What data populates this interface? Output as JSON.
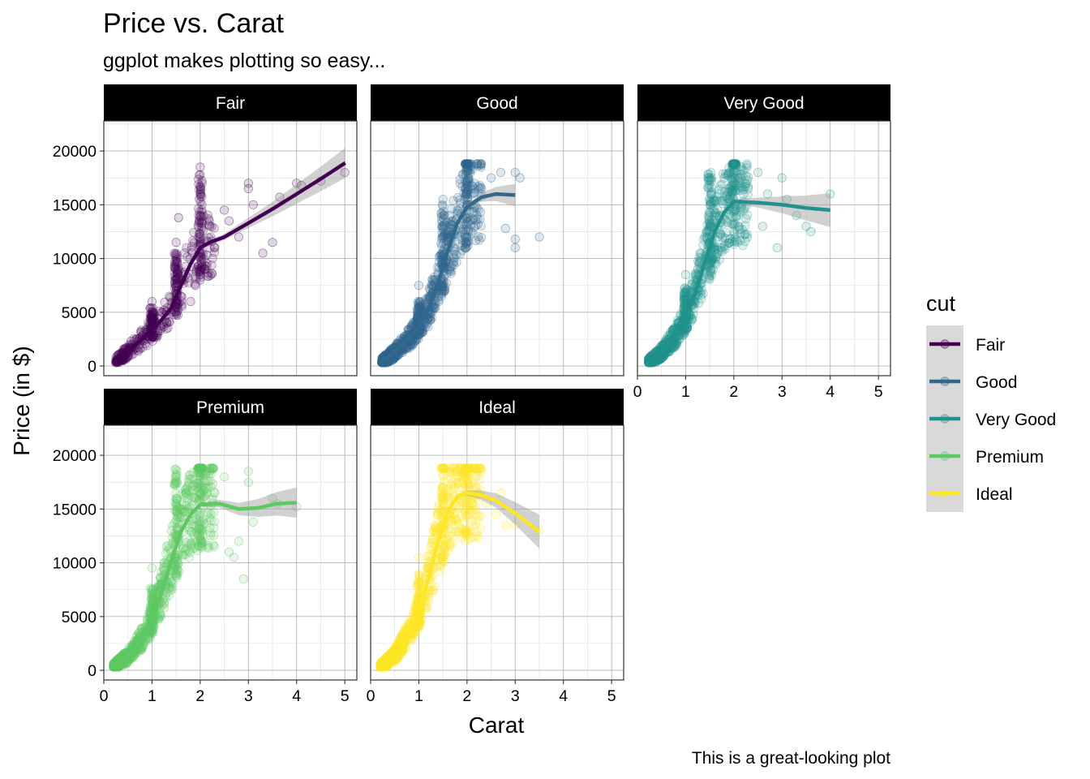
{
  "chart_data": {
    "type": "scatter",
    "title": "Price vs. Carat",
    "subtitle": "ggplot makes plotting so easy...",
    "caption": "This is a great-looking plot",
    "xlabel": "Carat",
    "ylabel": "Price (in $)",
    "xlim": [
      0,
      5.25
    ],
    "ylim": [
      -900,
      22800
    ],
    "x_ticks": [
      "0",
      "1",
      "2",
      "3",
      "4",
      "5"
    ],
    "y_ticks": [
      "0",
      "5000",
      "10000",
      "15000",
      "20000"
    ],
    "grid": true,
    "point_alpha": 0.15,
    "legend": {
      "title": "cut",
      "position": "right"
    },
    "series": [
      {
        "name": "Fair",
        "color": "#440154",
        "points": [
          [
            0.25,
            400
          ],
          [
            0.3,
            600
          ],
          [
            0.35,
            800
          ],
          [
            0.4,
            1000
          ],
          [
            0.45,
            1200
          ],
          [
            0.5,
            1500
          ],
          [
            0.55,
            1800
          ],
          [
            0.6,
            2000
          ],
          [
            0.7,
            2300
          ],
          [
            0.75,
            2600
          ],
          [
            0.8,
            2800
          ],
          [
            0.9,
            3100
          ],
          [
            1.0,
            3500
          ],
          [
            1.0,
            4300
          ],
          [
            1.0,
            6000
          ],
          [
            1.05,
            4500
          ],
          [
            1.1,
            4000
          ],
          [
            1.2,
            5000
          ],
          [
            1.25,
            5200
          ],
          [
            1.4,
            5000
          ],
          [
            1.5,
            5500
          ],
          [
            1.5,
            7000
          ],
          [
            1.5,
            9000
          ],
          [
            1.5,
            11500
          ],
          [
            1.55,
            13800
          ],
          [
            1.6,
            6500
          ],
          [
            1.7,
            8500
          ],
          [
            1.8,
            6000
          ],
          [
            1.9,
            7500
          ],
          [
            2.0,
            8000
          ],
          [
            2.0,
            10500
          ],
          [
            2.0,
            12000
          ],
          [
            2.0,
            14000
          ],
          [
            2.0,
            16000
          ],
          [
            2.0,
            18500
          ],
          [
            2.1,
            9000
          ],
          [
            2.2,
            13000
          ],
          [
            2.3,
            11000
          ],
          [
            2.5,
            14500
          ],
          [
            2.6,
            13500
          ],
          [
            2.8,
            12000
          ],
          [
            3.0,
            17000
          ],
          [
            3.0,
            16500
          ],
          [
            3.1,
            15000
          ],
          [
            3.3,
            10500
          ],
          [
            3.5,
            11500
          ],
          [
            3.65,
            15700
          ],
          [
            4.0,
            17000
          ],
          [
            4.1,
            16800
          ],
          [
            4.5,
            17200
          ],
          [
            5.0,
            18000
          ]
        ],
        "trend": [
          [
            0.25,
            500
          ],
          [
            0.5,
            1400
          ],
          [
            0.8,
            2500
          ],
          [
            1.0,
            3400
          ],
          [
            1.2,
            4300
          ],
          [
            1.4,
            5400
          ],
          [
            1.6,
            7500
          ],
          [
            1.8,
            9500
          ],
          [
            2.0,
            11000
          ],
          [
            2.2,
            11500
          ],
          [
            2.5,
            12000
          ],
          [
            3.0,
            13300
          ],
          [
            3.5,
            14600
          ],
          [
            4.0,
            16000
          ],
          [
            4.5,
            17400
          ],
          [
            5.01,
            18900
          ]
        ],
        "band": 800
      },
      {
        "name": "Good",
        "color": "#31688e",
        "points": [
          [
            0.23,
            350
          ],
          [
            0.3,
            500
          ],
          [
            0.35,
            650
          ],
          [
            0.4,
            800
          ],
          [
            0.45,
            950
          ],
          [
            0.5,
            1200
          ],
          [
            0.55,
            1400
          ],
          [
            0.6,
            1600
          ],
          [
            0.7,
            2000
          ],
          [
            0.75,
            2300
          ],
          [
            0.8,
            2600
          ],
          [
            0.9,
            3000
          ],
          [
            1.0,
            3600
          ],
          [
            1.0,
            5500
          ],
          [
            1.0,
            7500
          ],
          [
            1.05,
            4800
          ],
          [
            1.1,
            5000
          ],
          [
            1.2,
            5800
          ],
          [
            1.25,
            6500
          ],
          [
            1.3,
            7000
          ],
          [
            1.4,
            8500
          ],
          [
            1.5,
            9500
          ],
          [
            1.5,
            12000
          ],
          [
            1.5,
            15500
          ],
          [
            1.6,
            11000
          ],
          [
            1.7,
            13500
          ],
          [
            1.8,
            14500
          ],
          [
            1.9,
            12500
          ],
          [
            2.0,
            15000
          ],
          [
            2.0,
            17000
          ],
          [
            2.0,
            18500
          ],
          [
            2.1,
            16000
          ],
          [
            2.2,
            14000
          ],
          [
            2.3,
            16500
          ],
          [
            2.5,
            17500
          ],
          [
            2.7,
            18000
          ],
          [
            2.8,
            12800
          ],
          [
            3.0,
            18000
          ],
          [
            3.0,
            11000
          ],
          [
            3.0,
            11800
          ],
          [
            3.1,
            17500
          ],
          [
            3.5,
            12000
          ]
        ],
        "trend": [
          [
            0.23,
            350
          ],
          [
            0.5,
            1300
          ],
          [
            0.8,
            2600
          ],
          [
            1.0,
            3700
          ],
          [
            1.2,
            5300
          ],
          [
            1.4,
            7700
          ],
          [
            1.6,
            10700
          ],
          [
            1.8,
            13300
          ],
          [
            2.0,
            14800
          ],
          [
            2.3,
            15700
          ],
          [
            2.6,
            16000
          ],
          [
            3.0,
            15900
          ]
        ],
        "band": 600
      },
      {
        "name": "Very Good",
        "color": "#21918c",
        "points": [
          [
            0.23,
            350
          ],
          [
            0.3,
            500
          ],
          [
            0.35,
            650
          ],
          [
            0.4,
            800
          ],
          [
            0.45,
            950
          ],
          [
            0.5,
            1200
          ],
          [
            0.6,
            1700
          ],
          [
            0.7,
            2200
          ],
          [
            0.8,
            2800
          ],
          [
            0.9,
            3600
          ],
          [
            1.0,
            4500
          ],
          [
            1.0,
            6500
          ],
          [
            1.0,
            8500
          ],
          [
            1.1,
            6000
          ],
          [
            1.2,
            7500
          ],
          [
            1.25,
            9000
          ],
          [
            1.3,
            10500
          ],
          [
            1.4,
            12000
          ],
          [
            1.5,
            13000
          ],
          [
            1.5,
            15000
          ],
          [
            1.5,
            17500
          ],
          [
            1.6,
            14000
          ],
          [
            1.7,
            16000
          ],
          [
            1.8,
            17500
          ],
          [
            1.9,
            16500
          ],
          [
            2.0,
            17000
          ],
          [
            2.0,
            18000
          ],
          [
            2.0,
            18700
          ],
          [
            2.1,
            17500
          ],
          [
            2.2,
            18200
          ],
          [
            2.3,
            16500
          ],
          [
            2.5,
            18000
          ],
          [
            2.6,
            13000
          ],
          [
            2.7,
            16000
          ],
          [
            2.9,
            11000
          ],
          [
            3.0,
            17500
          ],
          [
            3.1,
            15500
          ],
          [
            3.3,
            14000
          ],
          [
            3.5,
            13000
          ],
          [
            3.6,
            12500
          ],
          [
            4.0,
            16000
          ]
        ],
        "trend": [
          [
            0.23,
            350
          ],
          [
            0.5,
            1300
          ],
          [
            0.8,
            2900
          ],
          [
            1.0,
            4500
          ],
          [
            1.2,
            6800
          ],
          [
            1.4,
            9700
          ],
          [
            1.6,
            12500
          ],
          [
            1.8,
            14300
          ],
          [
            2.0,
            15300
          ],
          [
            2.5,
            15200
          ],
          [
            3.0,
            15000
          ],
          [
            3.5,
            14700
          ],
          [
            4.0,
            14500
          ]
        ],
        "band": 900
      },
      {
        "name": "Premium",
        "color": "#5ec962",
        "points": [
          [
            0.2,
            350
          ],
          [
            0.3,
            500
          ],
          [
            0.35,
            650
          ],
          [
            0.4,
            800
          ],
          [
            0.45,
            1000
          ],
          [
            0.5,
            1200
          ],
          [
            0.6,
            1700
          ],
          [
            0.7,
            2300
          ],
          [
            0.8,
            3000
          ],
          [
            0.9,
            3800
          ],
          [
            1.0,
            4700
          ],
          [
            1.0,
            7000
          ],
          [
            1.0,
            9500
          ],
          [
            1.1,
            6000
          ],
          [
            1.2,
            8000
          ],
          [
            1.25,
            10000
          ],
          [
            1.3,
            11500
          ],
          [
            1.4,
            13000
          ],
          [
            1.5,
            14000
          ],
          [
            1.5,
            16000
          ],
          [
            1.5,
            17500
          ],
          [
            1.6,
            15000
          ],
          [
            1.7,
            16500
          ],
          [
            1.8,
            17800
          ],
          [
            1.9,
            16000
          ],
          [
            2.0,
            17000
          ],
          [
            2.0,
            18200
          ],
          [
            2.0,
            18700
          ],
          [
            2.1,
            17000
          ],
          [
            2.2,
            18500
          ],
          [
            2.3,
            16500
          ],
          [
            2.5,
            18000
          ],
          [
            2.6,
            11000
          ],
          [
            2.7,
            10500
          ],
          [
            2.8,
            12000
          ],
          [
            2.9,
            8500
          ],
          [
            3.0,
            18500
          ],
          [
            3.0,
            17500
          ],
          [
            3.1,
            13800
          ],
          [
            3.5,
            16000
          ],
          [
            3.6,
            15500
          ],
          [
            4.0,
            15200
          ]
        ],
        "trend": [
          [
            0.2,
            300
          ],
          [
            0.5,
            1300
          ],
          [
            0.8,
            3000
          ],
          [
            1.0,
            4700
          ],
          [
            1.2,
            7200
          ],
          [
            1.4,
            10200
          ],
          [
            1.6,
            12900
          ],
          [
            1.8,
            14500
          ],
          [
            2.0,
            15400
          ],
          [
            2.4,
            15500
          ],
          [
            2.8,
            15000
          ],
          [
            3.2,
            15100
          ],
          [
            3.6,
            15500
          ],
          [
            4.0,
            15600
          ]
        ],
        "band": 800
      },
      {
        "name": "Ideal",
        "color": "#fde725",
        "points": [
          [
            0.2,
            350
          ],
          [
            0.3,
            500
          ],
          [
            0.35,
            650
          ],
          [
            0.4,
            800
          ],
          [
            0.45,
            1000
          ],
          [
            0.5,
            1300
          ],
          [
            0.6,
            1800
          ],
          [
            0.7,
            2500
          ],
          [
            0.8,
            3300
          ],
          [
            0.9,
            4300
          ],
          [
            1.0,
            5500
          ],
          [
            1.0,
            8000
          ],
          [
            1.0,
            10500
          ],
          [
            1.1,
            7000
          ],
          [
            1.2,
            9500
          ],
          [
            1.25,
            11500
          ],
          [
            1.3,
            13000
          ],
          [
            1.4,
            14500
          ],
          [
            1.5,
            15500
          ],
          [
            1.5,
            17000
          ],
          [
            1.5,
            18000
          ],
          [
            1.6,
            16000
          ],
          [
            1.7,
            17500
          ],
          [
            1.8,
            18500
          ],
          [
            1.9,
            17000
          ],
          [
            2.0,
            17500
          ],
          [
            2.0,
            18400
          ],
          [
            2.0,
            18700
          ],
          [
            2.1,
            16000
          ],
          [
            2.2,
            17000
          ],
          [
            2.3,
            18500
          ],
          [
            2.4,
            15500
          ],
          [
            2.6,
            14500
          ],
          [
            2.7,
            16500
          ],
          [
            2.8,
            13500
          ],
          [
            3.0,
            13500
          ],
          [
            3.5,
            13000
          ]
        ],
        "trend": [
          [
            0.2,
            300
          ],
          [
            0.5,
            1400
          ],
          [
            0.8,
            3500
          ],
          [
            1.0,
            5500
          ],
          [
            1.2,
            8500
          ],
          [
            1.4,
            12000
          ],
          [
            1.6,
            14800
          ],
          [
            1.8,
            16200
          ],
          [
            2.0,
            16500
          ],
          [
            2.3,
            16300
          ],
          [
            2.6,
            15800
          ],
          [
            3.0,
            14600
          ],
          [
            3.5,
            12900
          ]
        ],
        "band": 900
      }
    ]
  }
}
